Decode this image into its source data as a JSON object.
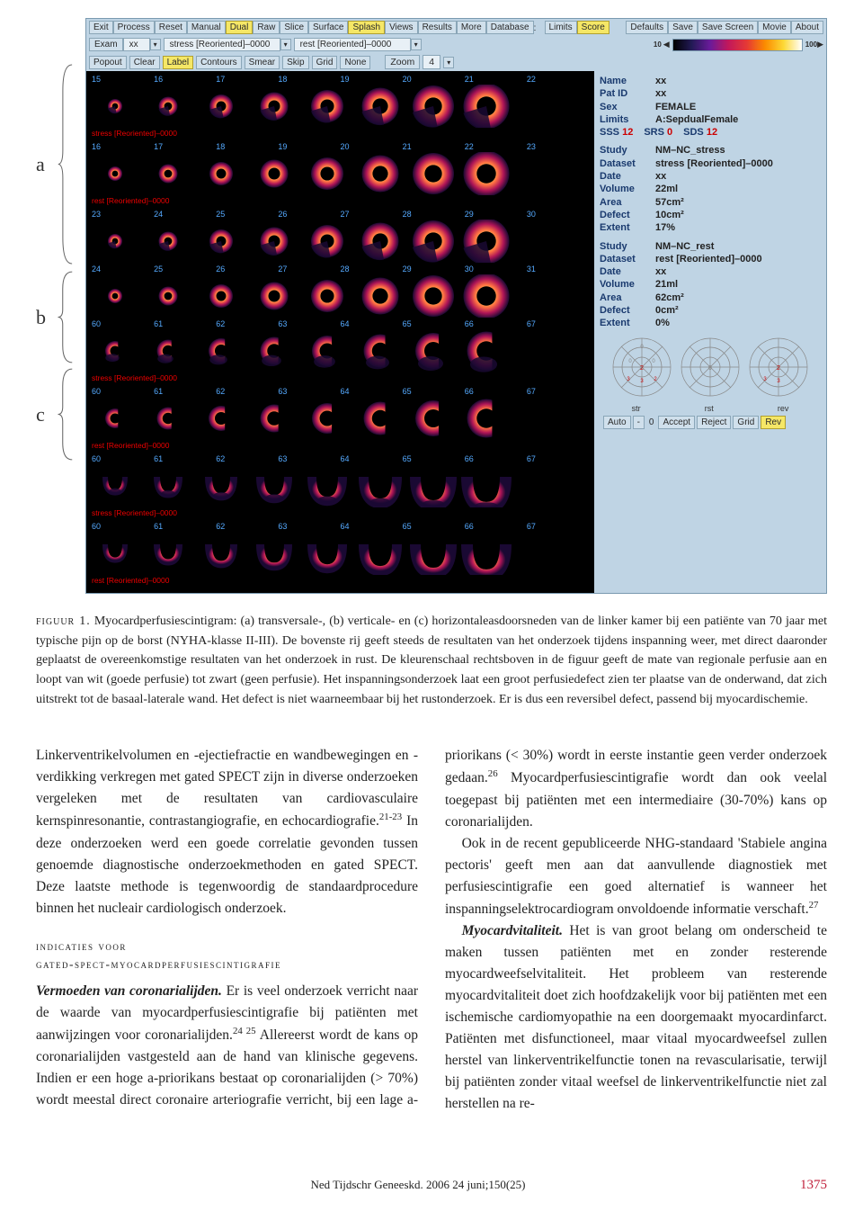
{
  "braces": {
    "a": "a",
    "b": "b",
    "c": "c"
  },
  "menubar1": {
    "items": [
      "Exit",
      "Process",
      "Reset",
      "Manual",
      "Dual",
      "Raw",
      "Slice",
      "Surface",
      "Splash",
      "Views",
      "Results",
      "More",
      "Database"
    ],
    "active": [
      "Dual",
      "Splash"
    ],
    "sep_after": "Database",
    "limits": "Limits",
    "score": "Score",
    "right": [
      "Defaults",
      "Save",
      "Save Screen",
      "Movie",
      "About"
    ]
  },
  "row2": {
    "exam": "Exam",
    "exam_val": "xx",
    "study1": "stress [Reoriented]–0000",
    "study2": "rest [Reoriented]–0000",
    "scale_left": "10",
    "scale_right": "100"
  },
  "row3": {
    "items": [
      "Popout",
      "Clear",
      "Label",
      "Contours",
      "Smear",
      "Skip",
      "Grid",
      "None"
    ],
    "active": [
      "Label"
    ],
    "zoom": "Zoom",
    "zoom_val": "4"
  },
  "scan": {
    "r1_nums": [
      "15",
      "16",
      "17",
      "18",
      "19",
      "20",
      "21",
      "22"
    ],
    "r1_lbl": "stress [Reoriented]–0000  <sa>",
    "r2_nums": [
      "16",
      "17",
      "18",
      "19",
      "20",
      "21",
      "22",
      "23"
    ],
    "r2_lbl": "rest [Reoriented]–0000  <sa>",
    "r3_nums": [
      "23",
      "24",
      "25",
      "26",
      "27",
      "28",
      "29",
      "30"
    ],
    "r4_nums": [
      "24",
      "25",
      "26",
      "27",
      "28",
      "29",
      "30",
      "31"
    ],
    "r5_nums": [
      "60",
      "61",
      "62",
      "63",
      "64",
      "65",
      "66",
      "67"
    ],
    "r5_lbl": "stress [Reoriented]–0000  <va>",
    "r6_nums": [
      "60",
      "61",
      "62",
      "63",
      "64",
      "65",
      "66",
      "67"
    ],
    "r6_lbl": "rest [Reoriented]–0000  <va>",
    "r7_nums": [
      "60",
      "61",
      "62",
      "63",
      "64",
      "65",
      "66",
      "67"
    ],
    "r7_lbl": "stress [Reoriented]–0000  <ha>",
    "r8_nums": [
      "60",
      "61",
      "62",
      "63",
      "64",
      "65",
      "66",
      "67"
    ],
    "r8_lbl": "rest [Reoriented]–0000  <ha>"
  },
  "patient": {
    "Name": "xx",
    "PatID": "xx",
    "Sex": "FEMALE",
    "Limits": "A:SepdualFemale",
    "sss_k": "SSS",
    "sss_v": "12",
    "srs_k": "SRS",
    "srs_v": "0",
    "sds_k": "SDS",
    "sds_v": "12"
  },
  "stress": {
    "Study": "NM–NC_stress",
    "Dataset": "stress [Reoriented]–0000",
    "Date": "xx",
    "Volume": "22ml",
    "Area": "57cm²",
    "Defect": "10cm²",
    "Extent": "17%"
  },
  "rest": {
    "Study": "NM–NC_rest",
    "Dataset": "rest [Reoriented]–0000",
    "Date": "xx",
    "Volume": "21ml",
    "Area": "62cm²",
    "Defect": "0cm²",
    "Extent": "0%"
  },
  "polar_labels": {
    "a": "str",
    "b": "rst",
    "c": "rev"
  },
  "bottombar": {
    "auto": "Auto",
    "dash": "-",
    "zero": "0",
    "accept": "Accept",
    "reject": "Reject",
    "grid": "Grid",
    "rev": "Rev",
    "active": "Rev"
  },
  "caption": {
    "head": "figuur 1.",
    "body": " Myocardperfusiescintigram: (a) transversale-, (b) verticale- en (c) horizontaleasdoorsneden van de linker kamer bij een patiënte van 70 jaar met typische pijn op de borst (NYHA-klasse II-III). De bovenste rij geeft steeds de resultaten van het onderzoek tijdens inspanning weer, met direct daaronder geplaatst de overeenkomstige resultaten van het onderzoek in rust. De kleurenschaal rechtsboven in de figuur geeft de mate van regionale perfusie aan en loopt van wit (goede perfusie) tot zwart (geen perfusie). Het inspanningsonderzoek laat een groot perfusiedefect zien ter plaatse van de onderwand, dat zich uitstrekt tot de basaal-laterale wand. Het defect is niet waarneembaar bij het rustonderzoek. Er is dus een reversibel defect, passend bij myocardischemie."
  },
  "body": {
    "p1": "Linkerventrikelvolumen en -ejectiefractie en wandbewegingen en -verdikking verkregen met gated SPECT zijn in diverse onderzoeken vergeleken met de resultaten van cardiovasculaire kernspinresonantie, contrastangiografie, en echocardiografie.",
    "p1sup": "21-23",
    "p1b": " In deze onderzoeken werd een goede correlatie gevonden tussen genoemde diagnostische onderzoekmethoden en gated SPECT. Deze laatste methode is tegenwoordig de standaardprocedure binnen het nucleair cardiologisch onderzoek.",
    "sec": "indicaties voor\ngated-spect-myocardperfusiescintigrafie",
    "p2h": "Vermoeden van coronarialijden.",
    "p2": " Er is veel onderzoek verricht naar de waarde van myocardperfusiescintigrafie bij patiënten met aanwijzingen voor coronarialijden.",
    "p2sup": "24 25",
    "p2b": " Allereerst wordt de kans op coronarialijden vastgesteld aan de hand van klinische gegevens. Indien er een hoge a-priorikans bestaat op coronarialijden (> 70%) wordt meestal direct coronaire arteriografie verricht, bij een lage a-priorikans (< 30%) wordt in eerste instantie geen verder onderzoek gedaan.",
    "p2sup2": "26",
    "p2c": " Myocardperfusiescintigrafie wordt dan ook veelal toegepast bij patiënten met een intermediaire (30-70%) kans op coronarialijden.",
    "p3": "Ook in de recent gepubliceerde NHG-standaard 'Stabiele angina pectoris' geeft men aan dat aanvullende diagnostiek met perfusiescintigrafie een goed alternatief is wanneer het inspanningselektrocardiogram onvoldoende informatie verschaft.",
    "p3sup": "27",
    "p4h": "Myocardvitaliteit.",
    "p4": " Het is van groot belang om onderscheid te maken tussen patiënten met en zonder resterende myocardweefselvitaliteit. Het probleem van resterende myocardvitaliteit doet zich hoofdzakelijk voor bij patiënten met een ischemische cardiomyopathie na een doorgemaakt myocardinfarct. Patiënten met disfunctioneel, maar vitaal myocardweefsel zullen herstel van linkerventrikelfunctie tonen na revascularisatie, terwijl bij patiënten zonder vitaal weefsel de linkerventrikelfunctie niet zal herstellen na re-"
  },
  "footer": {
    "journal": "Ned Tijdschr Geneeskd. 2006 24 juni;150(25)",
    "page": "1375"
  }
}
